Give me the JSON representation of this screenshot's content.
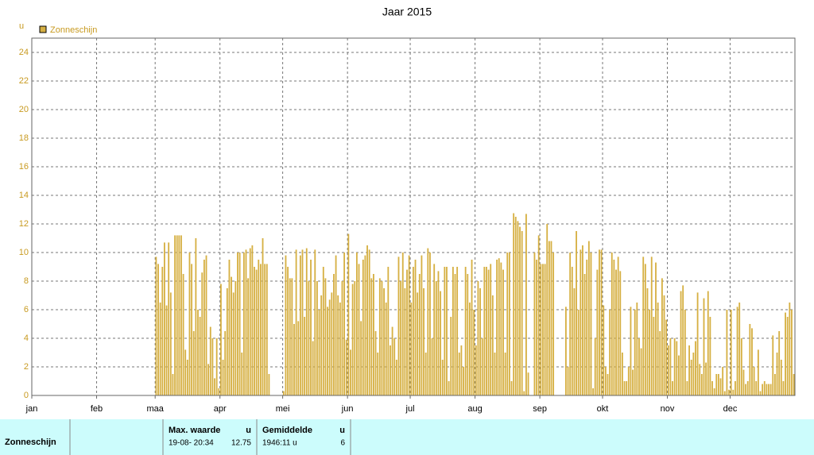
{
  "chart_data": {
    "type": "bar",
    "title": "Jaar 2015",
    "y_label": "u",
    "series_name": "Zonneschijn",
    "color": "#d6b043",
    "categories": [
      "jan",
      "feb",
      "maa",
      "apr",
      "mei",
      "jun",
      "jul",
      "aug",
      "sep",
      "okt",
      "nov",
      "dec"
    ],
    "values": [
      [
        null,
        null,
        null,
        null,
        null,
        null,
        null,
        null,
        null,
        null,
        null,
        null,
        null,
        null,
        null,
        null,
        null,
        null,
        null,
        null,
        null,
        null,
        null,
        null,
        null,
        null,
        null,
        null,
        null,
        null,
        null
      ],
      [
        null,
        null,
        null,
        null,
        null,
        null,
        null,
        null,
        null,
        null,
        null,
        null,
        null,
        null,
        null,
        null,
        null,
        null,
        null,
        null,
        null,
        null,
        null,
        null,
        null,
        null,
        null,
        null
      ],
      [
        9.7,
        9.2,
        6.5,
        9,
        10.7,
        6.3,
        10.7,
        7.2,
        1.5,
        11.2,
        11.2,
        11.2,
        11.2,
        8.5,
        3.2,
        2.5,
        10,
        9.2,
        4.5,
        11,
        6,
        5.5,
        8.6,
        9.5,
        9.8,
        2.2,
        4.8,
        4,
        1.2,
        4,
        0.5
      ],
      [
        7.8,
        2.5,
        4.5,
        7.5,
        9.5,
        8.3,
        7.2,
        8,
        10,
        10,
        3,
        10,
        10.2,
        8.2,
        10.3,
        10.5,
        9,
        8.8,
        9.5,
        9.2,
        11,
        9.2,
        9.2,
        1.5,
        0,
        0,
        0,
        0,
        0,
        0
      ],
      [
        0.3,
        9.8,
        9,
        8.2,
        8.2,
        5,
        10.2,
        5.2,
        9.8,
        10.2,
        5.5,
        10.3,
        8,
        9.5,
        3.8,
        10.2,
        8,
        6,
        7,
        9,
        8.2,
        6.2,
        6.7,
        7.2,
        8.5,
        9.8,
        7,
        6.5,
        8,
        10,
        3.9
      ],
      [
        11.3,
        3.2,
        7.8,
        8,
        10,
        9.2,
        5.2,
        9.5,
        9.8,
        10.5,
        10.2,
        8.2,
        8.5,
        4.5,
        3,
        8.2,
        8,
        7.5,
        6.5,
        9,
        3.5,
        4.8,
        4,
        2.5,
        9.7,
        8,
        10,
        7.5,
        8.8,
        9.8
      ],
      [
        6.5,
        9,
        9.5,
        7.2,
        8.5,
        9.8,
        7.5,
        3,
        10.3,
        10,
        4,
        9.2,
        8,
        8.7,
        7.3,
        2.5,
        9,
        9,
        1,
        5.5,
        9,
        8.5,
        9,
        3,
        3.5,
        2,
        9,
        8.5,
        6.5,
        9.5,
        6
      ],
      [
        3.5,
        8,
        7.5,
        4,
        9,
        9,
        8.8,
        9.2,
        7,
        3,
        9.5,
        9.6,
        9.3,
        8.8,
        3,
        10,
        10,
        1,
        12.75,
        12.5,
        12.2,
        11.8,
        11.5,
        0.3,
        12.7,
        1.6,
        0,
        0,
        10,
        9.5,
        11.2
      ],
      [
        9.2,
        9.2,
        9.2,
        12,
        10.8,
        10.8,
        10,
        0,
        0,
        0,
        0,
        0,
        6.2,
        2,
        10,
        9,
        7.5,
        11.5,
        6,
        10.2,
        10.5,
        8.5,
        9.5,
        10.8,
        10,
        0.5,
        4,
        8.8,
        10.2,
        10.2
      ],
      [
        6.3,
        2,
        1.5,
        6,
        10,
        9.5,
        8.8,
        9.7,
        8.7,
        3,
        1,
        1,
        2,
        6.2,
        1.8,
        6,
        6.5,
        4,
        3.3,
        9.7,
        9.2,
        7.5,
        6,
        9.7,
        5.5,
        9.3,
        6.5,
        4.5,
        8.2,
        7,
        5.3
      ],
      [
        3.5,
        4,
        1,
        4,
        3.8,
        2.8,
        7.3,
        7.7,
        6,
        1,
        3.5,
        2.5,
        3,
        3.8,
        7.2,
        2.2,
        1.5,
        6.8,
        2.3,
        7.3,
        5.5,
        1,
        0.5,
        1.5,
        1.5,
        1.2,
        2,
        0.3,
        6,
        0.4
      ],
      [
        6,
        0.4,
        1,
        6.2,
        6.5,
        4,
        1.8,
        0.8,
        1,
        5,
        4.7,
        2,
        1,
        3.2,
        0.3,
        0.8,
        1,
        0.8,
        0.8,
        0.8,
        4.2,
        1.5,
        3,
        4.5,
        2.5,
        1,
        5.8,
        5.5,
        6.5,
        6,
        1.5
      ]
    ],
    "ylim": [
      0,
      25
    ],
    "yticks": [
      0,
      2,
      4,
      6,
      8,
      10,
      12,
      14,
      16,
      18,
      20,
      22,
      24
    ],
    "grid": true
  },
  "table": {
    "row_label": "Zonneschijn",
    "max_header": "Max. waarde",
    "max_unit": "u",
    "max_date": "19-08- 20:34",
    "max_value": 12.75,
    "avg_header": "Gemiddelde",
    "avg_unit": "u",
    "avg_total": "1946:11 u",
    "avg_value": 6
  }
}
